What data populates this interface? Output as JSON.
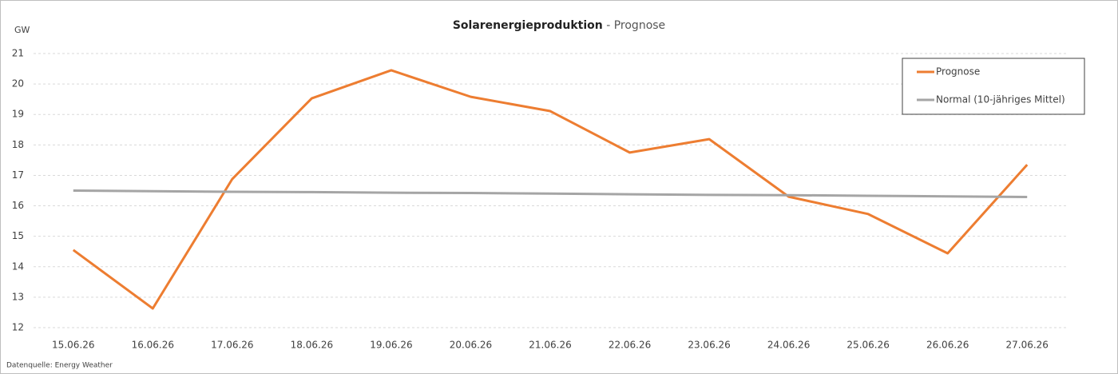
{
  "chart_data": {
    "type": "line",
    "title": "Solarenergieproduktion",
    "subtitle": "- Prognose",
    "y_label": "GW",
    "source": "Datenquelle: Energy Weather",
    "categories": [
      "15.06.26",
      "16.06.26",
      "17.06.26",
      "18.06.26",
      "19.06.26",
      "20.06.26",
      "21.06.26",
      "22.06.26",
      "23.06.26",
      "24.06.26",
      "25.06.26",
      "26.06.26",
      "27.06.26"
    ],
    "series": [
      {
        "name": "Prognose",
        "color": "#ed7d31",
        "values": [
          14.55,
          12.63,
          16.88,
          19.53,
          20.45,
          19.58,
          19.11,
          17.75,
          18.19,
          16.3,
          15.73,
          14.44,
          17.35
        ]
      },
      {
        "name": "Normal (10-jähriges Mittel)",
        "color": "#a5a5a5",
        "values": [
          16.5,
          16.48,
          16.46,
          16.45,
          16.43,
          16.42,
          16.4,
          16.38,
          16.36,
          16.35,
          16.33,
          16.31,
          16.29
        ]
      }
    ],
    "ylim": [
      12,
      21
    ],
    "yticks": [
      12,
      13,
      14,
      15,
      16,
      17,
      18,
      19,
      20,
      21
    ],
    "grid": true,
    "legend": "top-right"
  }
}
